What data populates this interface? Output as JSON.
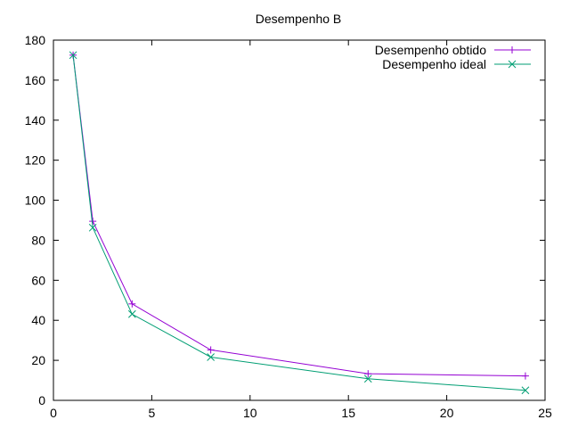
{
  "chart_data": {
    "type": "line",
    "title": "Desempenho B",
    "xlabel": "",
    "ylabel": "",
    "xlim": [
      0,
      25
    ],
    "ylim": [
      0,
      180
    ],
    "xticks": [
      0,
      5,
      10,
      15,
      20,
      25
    ],
    "yticks": [
      0,
      20,
      40,
      60,
      80,
      100,
      120,
      140,
      160,
      180
    ],
    "grid": false,
    "legend_position": "top-right",
    "x": [
      1,
      2,
      4,
      8,
      16,
      24
    ],
    "series": [
      {
        "name": "Desempenho obtido",
        "values": [
          172.5,
          89.5,
          48.2,
          25.2,
          13.3,
          12.2
        ],
        "color": "#9400d3",
        "marker": "plus"
      },
      {
        "name": "Desempenho ideal",
        "values": [
          172.5,
          86.3,
          43.1,
          21.6,
          10.8,
          5.0
        ],
        "color": "#009e73",
        "marker": "cross"
      }
    ]
  }
}
